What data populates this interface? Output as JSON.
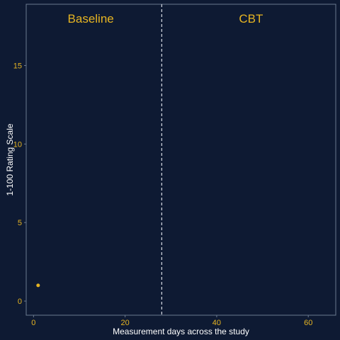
{
  "chart_data": {
    "type": "scatter",
    "title": "",
    "xlabel": "Measurement days across the study",
    "ylabel": "1-100 Rating Scale",
    "xlim": [
      -1.6,
      66
    ],
    "ylim": [
      -0.9,
      18.9
    ],
    "x_ticks": [
      0,
      20,
      40,
      60
    ],
    "y_ticks": [
      0,
      5,
      10,
      15
    ],
    "grid": false,
    "phase_change_x": 28,
    "phases": [
      {
        "label": "Baseline",
        "x": 12.5
      },
      {
        "label": "CBT",
        "x": 47.5
      }
    ],
    "series": [
      {
        "x": [
          1
        ],
        "y": [
          1
        ]
      }
    ]
  },
  "colors": {
    "background": "#0e1a33",
    "panel_border": "#6b7a8f",
    "accent": "#e6b422",
    "axis_text": "#ffffff",
    "phase_line": "#d9dde5"
  }
}
